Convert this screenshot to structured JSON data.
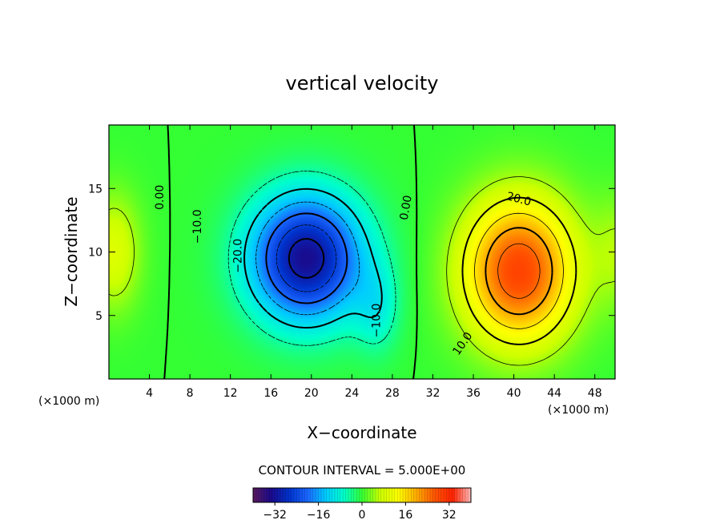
{
  "chart_data": {
    "type": "contour",
    "title": "vertical velocity",
    "xlabel": "X−coordinate",
    "ylabel": "Z−coordinate",
    "x_unit_left": "(×1000 m)",
    "x_unit_right": "(×1000 m)",
    "xlim": [
      0,
      50
    ],
    "ylim": [
      0,
      20
    ],
    "x_ticks": [
      4,
      8,
      12,
      16,
      20,
      24,
      28,
      32,
      36,
      40,
      44,
      48
    ],
    "y_ticks": [
      5,
      10,
      15
    ],
    "contour_interval_label": "CONTOUR INTERVAL = 5.000E+00",
    "contour_labels": [
      {
        "text": "0.00",
        "x": 5.0,
        "y": 14.3,
        "angle": 90
      },
      {
        "text": "0.00",
        "x": 29.3,
        "y": 13.5,
        "angle": 80
      },
      {
        "text": "−10.0",
        "x": 8.7,
        "y": 12.0,
        "angle": 90
      },
      {
        "text": "−20.0",
        "x": 12.7,
        "y": 9.7,
        "angle": 90
      },
      {
        "text": "−10.0",
        "x": 26.4,
        "y": 4.6,
        "angle": 90
      },
      {
        "text": "20.0",
        "x": 40.5,
        "y": 14.2,
        "angle": -15
      },
      {
        "text": "10.0",
        "x": 34.9,
        "y": 2.8,
        "angle": 55
      }
    ],
    "extrema": {
      "min": -33,
      "max": 29
    },
    "colorbar": {
      "range": [
        -40,
        40
      ],
      "ticks": [
        -32,
        -16,
        0,
        16,
        32
      ],
      "tick_labels": [
        "−32",
        "−16",
        "0",
        "16",
        "32"
      ]
    },
    "colors": [
      "#5a1a5e",
      "#1a0a8c",
      "#0033cc",
      "#1a66ff",
      "#00ccff",
      "#00ffcc",
      "#33ff33",
      "#ccff00",
      "#ffff00",
      "#ffaa00",
      "#ff5500",
      "#ff2200",
      "#ffbbbb"
    ]
  }
}
